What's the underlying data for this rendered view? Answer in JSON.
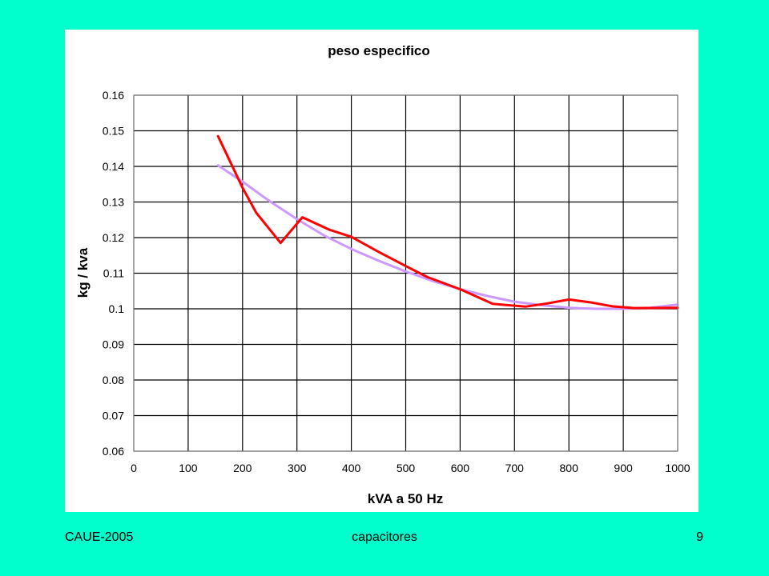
{
  "slide": {
    "background": "#00FFCC",
    "footer": {
      "left": "CAUE-2005",
      "center": "capacitores",
      "right": "9"
    }
  },
  "chart_data": {
    "type": "line",
    "title": "peso especifico",
    "xlabel": "kVA a 50 Hz",
    "ylabel": "kg / kva",
    "xlim": [
      0,
      1000
    ],
    "ylim": [
      0.06,
      0.16
    ],
    "x_ticks": [
      0,
      100,
      200,
      300,
      400,
      500,
      600,
      700,
      800,
      900,
      1000
    ],
    "y_ticks": [
      0.06,
      0.07,
      0.08,
      0.09,
      0.1,
      0.11,
      0.12,
      0.13,
      0.14,
      0.15,
      0.16
    ],
    "x_tick_labels": [
      "0",
      "100",
      "200",
      "300",
      "400",
      "500",
      "600",
      "700",
      "800",
      "900",
      "1000"
    ],
    "y_tick_labels": [
      "0.06",
      "0.07",
      "0.08",
      "0.09",
      "0.1",
      "0.11",
      "0.12",
      "0.13",
      "0.14",
      "0.15",
      "0.16"
    ],
    "grid": true,
    "legend": "none",
    "series": [
      {
        "color": "#FF0000",
        "points": [
          [
            155,
            0.1485
          ],
          [
            200,
            0.134
          ],
          [
            225,
            0.127
          ],
          [
            270,
            0.1185
          ],
          [
            310,
            0.1257
          ],
          [
            360,
            0.1222
          ],
          [
            400,
            0.1202
          ],
          [
            450,
            0.116
          ],
          [
            500,
            0.112
          ],
          [
            540,
            0.1089
          ],
          [
            600,
            0.1055
          ],
          [
            660,
            0.1014
          ],
          [
            720,
            0.1006
          ],
          [
            760,
            0.1015
          ],
          [
            800,
            0.1026
          ],
          [
            840,
            0.1018
          ],
          [
            880,
            0.1007
          ],
          [
            920,
            0.1002
          ],
          [
            1000,
            0.1003
          ]
        ]
      },
      {
        "color": "#CC99FF",
        "points": [
          [
            155,
            0.1403
          ],
          [
            200,
            0.1357
          ],
          [
            250,
            0.1302
          ],
          [
            300,
            0.1252
          ],
          [
            350,
            0.1206
          ],
          [
            400,
            0.1168
          ],
          [
            450,
            0.1135
          ],
          [
            500,
            0.1105
          ],
          [
            550,
            0.1078
          ],
          [
            600,
            0.1055
          ],
          [
            650,
            0.1036
          ],
          [
            700,
            0.102
          ],
          [
            750,
            0.101
          ],
          [
            800,
            0.1003
          ],
          [
            850,
            0.1
          ],
          [
            900,
            0.1
          ],
          [
            950,
            0.1003
          ],
          [
            1000,
            0.1012
          ]
        ]
      }
    ]
  }
}
